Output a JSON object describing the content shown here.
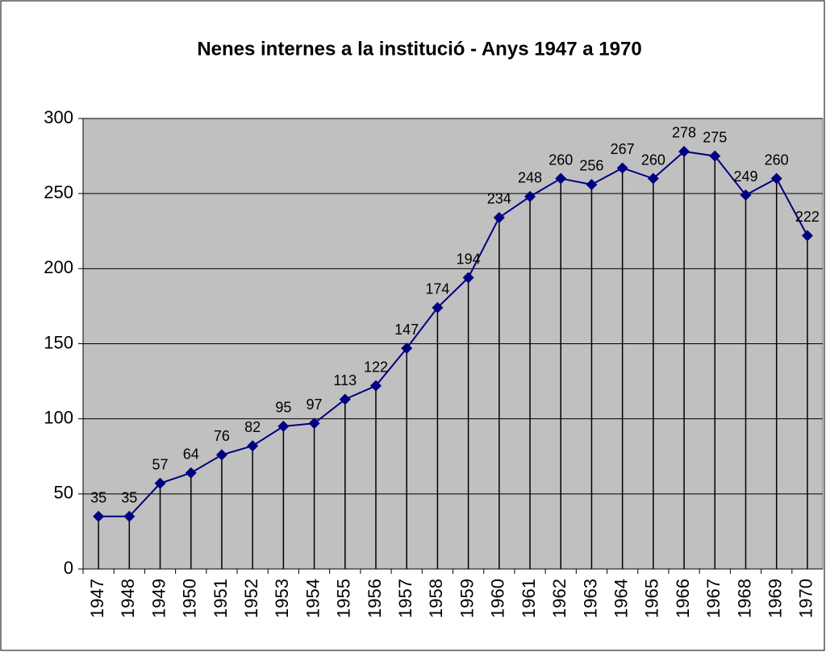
{
  "chart_data": {
    "type": "line",
    "title": "Nenes internes a la institució - Anys 1947 a 1970",
    "categories": [
      "1947",
      "1948",
      "1949",
      "1950",
      "1951",
      "1952",
      "1953",
      "1954",
      "1955",
      "1956",
      "1957",
      "1958",
      "1959",
      "1960",
      "1961",
      "1962",
      "1963",
      "1964",
      "1965",
      "1966",
      "1967",
      "1968",
      "1969",
      "1970"
    ],
    "series": [
      {
        "name": "Nenes internes",
        "color": "#000080",
        "values": [
          35,
          35,
          57,
          64,
          76,
          82,
          95,
          97,
          113,
          122,
          147,
          174,
          194,
          234,
          248,
          260,
          256,
          267,
          260,
          278,
          275,
          249,
          260,
          222
        ]
      }
    ],
    "ylim": [
      0,
      300
    ],
    "yticks": [
      0,
      50,
      100,
      150,
      200,
      250,
      300
    ],
    "grid": true,
    "drop_lines": true,
    "plot_background": "#c0c0c0"
  }
}
